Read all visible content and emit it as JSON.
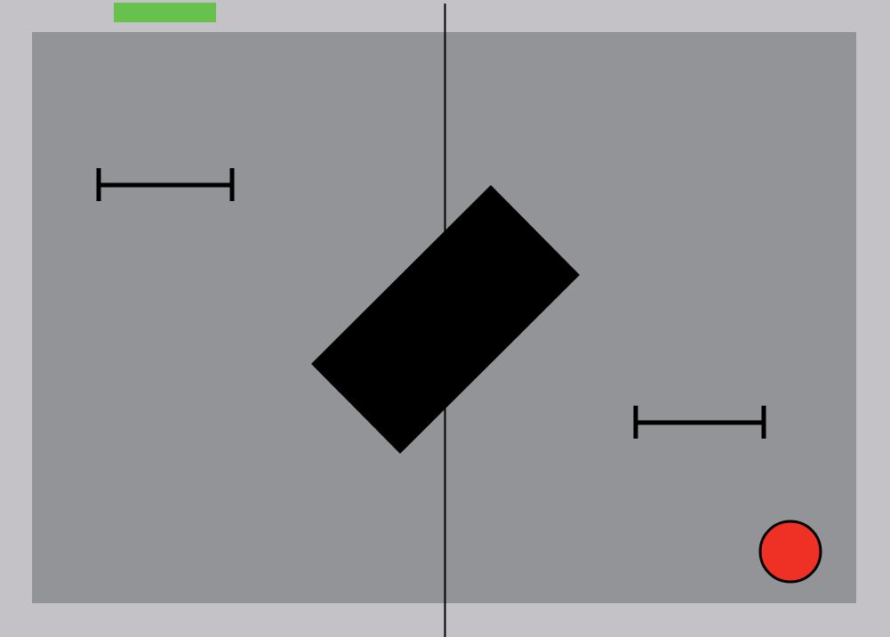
{
  "game": {
    "colors": {
      "border": "#c4c2c7",
      "field": "#939497",
      "divider": "#000000",
      "obstacle": "#000000",
      "barrier": "#000000",
      "goal_marker": "#67c24d",
      "ball_fill": "#ee3124",
      "ball_stroke": "#000000"
    },
    "shapes": {
      "goal_marker": "rectangle",
      "barrier": "i-beam",
      "obstacle": "rotated-rectangle",
      "ball": "circle",
      "divider": "line"
    }
  }
}
